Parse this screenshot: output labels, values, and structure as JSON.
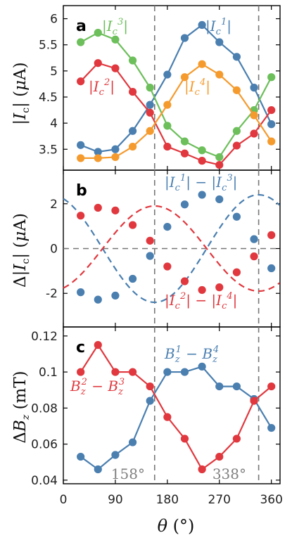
{
  "colors": {
    "blue": "#4a7fb0",
    "red": "#e0383e",
    "green": "#6cbf5a",
    "orange": "#f59b2e",
    "ref": "#777777"
  },
  "x_axis": {
    "label": "θ (°)",
    "ticks": [
      "0",
      "90",
      "180",
      "270",
      "360"
    ],
    "tick_values": [
      0,
      90,
      180,
      270,
      360
    ],
    "xlim": [
      0,
      375
    ]
  },
  "ref_lines": {
    "values": [
      158,
      338
    ],
    "labels": [
      "158°",
      "338°"
    ]
  },
  "chart_data": [
    {
      "type": "line",
      "letter": "a",
      "ylabel": "|I_c| (μA)",
      "ylim": [
        3.1,
        6.25
      ],
      "yticks": [
        3.5,
        4,
        4.5,
        5,
        5.5,
        6
      ],
      "ytick_labels": [
        "3.5",
        "4",
        "4.5",
        "5",
        "5.5",
        "6"
      ],
      "x": [
        30,
        60,
        90,
        120,
        150,
        180,
        210,
        240,
        270,
        300,
        330,
        360
      ],
      "series": [
        {
          "name": "|I_c^1|",
          "color_key": "blue",
          "values": [
            3.58,
            3.45,
            3.5,
            3.85,
            4.35,
            4.93,
            5.63,
            5.88,
            5.55,
            5.27,
            4.68,
            3.98
          ]
        },
        {
          "name": "|I_c^2|",
          "color_key": "red",
          "values": [
            4.8,
            5.15,
            5.05,
            4.6,
            4.2,
            3.55,
            3.42,
            3.28,
            3.2,
            3.57,
            3.8,
            4.25
          ]
        },
        {
          "name": "|I_c^3|",
          "color_key": "green",
          "values": [
            5.55,
            5.73,
            5.6,
            5.2,
            4.68,
            3.95,
            3.65,
            3.48,
            3.35,
            3.85,
            4.25,
            4.88
          ]
        },
        {
          "name": "|I_c^4|",
          "color_key": "orange",
          "values": [
            3.33,
            3.33,
            3.35,
            3.55,
            3.85,
            4.35,
            4.88,
            5.13,
            4.93,
            4.63,
            4.15,
            3.65
          ]
        }
      ]
    },
    {
      "type": "scatter",
      "letter": "b",
      "ylabel": "Δ|I_c| (μA)",
      "ylim": [
        -3.5,
        3.5
      ],
      "yticks": [
        -2,
        0,
        2
      ],
      "ytick_labels": [
        "-2",
        "0",
        "2"
      ],
      "x": [
        30,
        60,
        90,
        120,
        150,
        180,
        210,
        240,
        270,
        300,
        330,
        360
      ],
      "series": [
        {
          "name": "|I_c^1| − |I_c^3|",
          "color_key": "blue",
          "values": [
            -1.95,
            -2.28,
            -2.1,
            -1.35,
            -0.33,
            0.97,
            1.97,
            2.4,
            2.2,
            1.42,
            0.42,
            -0.88
          ]
        },
        {
          "name": "|I_c^2| − |I_c^4|",
          "color_key": "red",
          "values": [
            1.47,
            1.82,
            1.7,
            1.05,
            0.35,
            -0.8,
            -1.46,
            -1.85,
            -1.73,
            -1.06,
            -0.35,
            0.6
          ]
        }
      ],
      "fits": [
        {
          "color_key": "blue",
          "amplitude": -2.4,
          "phase": 68
        },
        {
          "color_key": "red",
          "amplitude": 1.9,
          "phase": 68
        }
      ]
    },
    {
      "type": "line",
      "letter": "c",
      "ylabel": "ΔB_z (mT)",
      "ylim": [
        0.038,
        0.125
      ],
      "yticks": [
        0.04,
        0.06,
        0.08,
        0.1,
        0.12
      ],
      "ytick_labels": [
        "0.04",
        "0.06",
        "0.08",
        "0.1",
        "0.12"
      ],
      "x": [
        30,
        60,
        90,
        120,
        150,
        180,
        210,
        240,
        270,
        300,
        330,
        360
      ],
      "series": [
        {
          "name": "B_z^1 − B_z^4",
          "color_key": "blue",
          "x": [
            30,
            60,
            90,
            120,
            150,
            180,
            210,
            240,
            270,
            300,
            330,
            360
          ],
          "values": [
            0.053,
            0.046,
            0.054,
            0.061,
            0.084,
            0.1,
            0.1,
            0.103,
            0.092,
            0.092,
            0.085,
            0.069
          ]
        },
        {
          "name": "B_z^2 − B_z^3",
          "color_key": "red",
          "x": [
            30,
            60,
            90,
            120,
            150,
            180,
            210,
            240,
            270,
            300,
            330,
            360
          ],
          "values": [
            0.1,
            0.115,
            0.1,
            0.1,
            0.092,
            0.075,
            0.063,
            0.046,
            0.053,
            0.063,
            0.084,
            0.092
          ]
        }
      ]
    }
  ]
}
